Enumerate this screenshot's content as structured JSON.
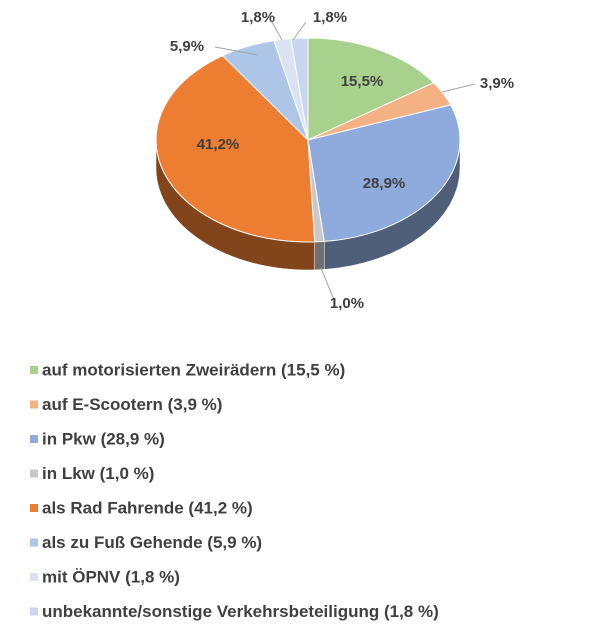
{
  "chart_data": {
    "type": "pie",
    "categories": [
      "auf motorisierten Zweirädern (15,5 %)",
      "auf E-Scootern (3,9 %)",
      "in Pkw (28,9 %)",
      "in Lkw (1,0 %)",
      "als Rad Fahrende (41,2 %)",
      "als zu Fuß Gehende (5,9 %)",
      "mit ÖPNV (1,8 %)",
      "unbekannte/sonstige Verkehrsbeteiligung (1,8 %)"
    ],
    "values": [
      15.5,
      3.9,
      28.9,
      1.0,
      41.2,
      5.9,
      1.8,
      1.8
    ],
    "value_labels": [
      "15,5%",
      "3,9%",
      "28,9%",
      "1,0%",
      "41,2%",
      "5,9%",
      "1,8%",
      "1,8%"
    ],
    "colors": [
      "#a9d18e",
      "#f4b183",
      "#8faadc",
      "#c9c9c9",
      "#ed7d31",
      "#adc5e7",
      "#dae3f3",
      "#c8d7ef"
    ],
    "legend": "bottom"
  }
}
